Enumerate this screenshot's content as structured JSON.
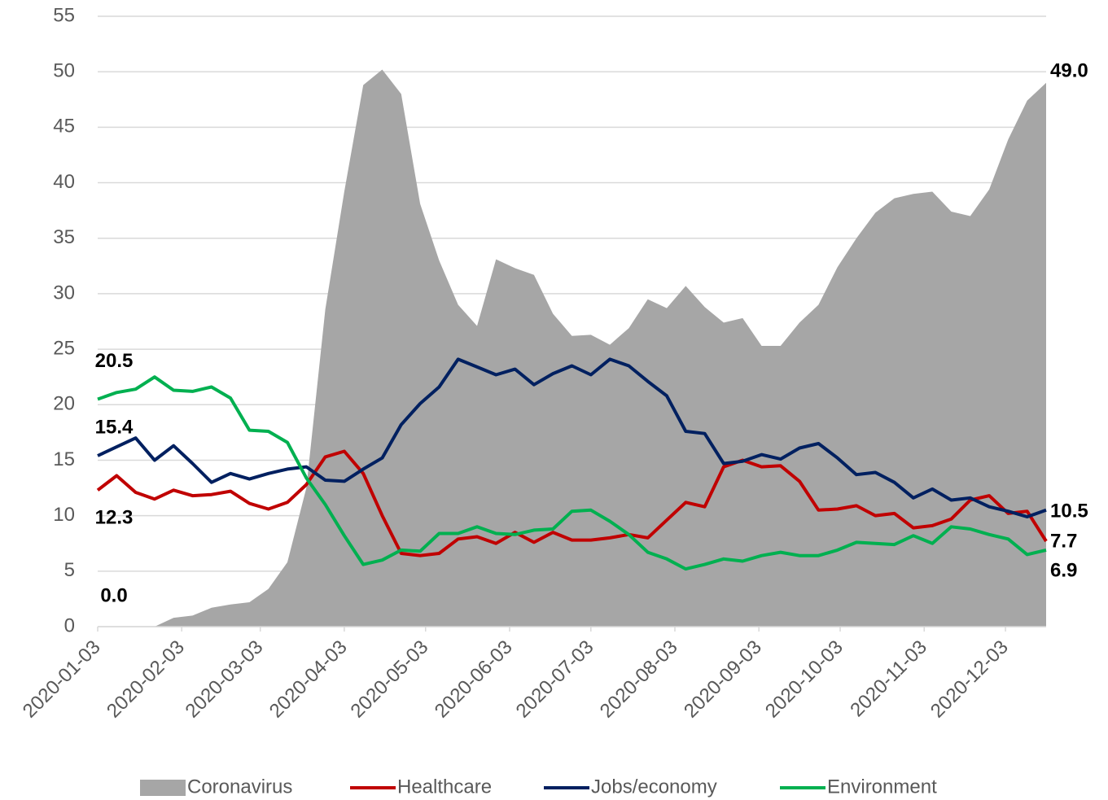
{
  "chart_data": {
    "type": "line",
    "x": [
      "2020-01-03",
      "2020-01-10",
      "2020-01-17",
      "2020-01-24",
      "2020-01-31",
      "2020-02-07",
      "2020-02-14",
      "2020-02-21",
      "2020-02-28",
      "2020-03-06",
      "2020-03-13",
      "2020-03-20",
      "2020-03-27",
      "2020-04-03",
      "2020-04-10",
      "2020-04-17",
      "2020-04-24",
      "2020-05-01",
      "2020-05-08",
      "2020-05-15",
      "2020-05-22",
      "2020-05-29",
      "2020-06-05",
      "2020-06-12",
      "2020-06-19",
      "2020-06-26",
      "2020-07-03",
      "2020-07-10",
      "2020-07-17",
      "2020-07-24",
      "2020-07-31",
      "2020-08-07",
      "2020-08-14",
      "2020-08-21",
      "2020-08-28",
      "2020-09-04",
      "2020-09-11",
      "2020-09-18",
      "2020-09-25",
      "2020-10-02",
      "2020-10-09",
      "2020-10-16",
      "2020-10-23",
      "2020-10-30",
      "2020-11-06",
      "2020-11-13",
      "2020-11-20",
      "2020-11-27",
      "2020-12-04",
      "2020-12-11",
      "2020-12-18"
    ],
    "xlim": [
      "2020-01-03",
      "2020-12-18"
    ],
    "xticks": [
      "2020-01-03",
      "2020-02-03",
      "2020-03-03",
      "2020-04-03",
      "2020-05-03",
      "2020-06-03",
      "2020-07-03",
      "2020-08-03",
      "2020-09-03",
      "2020-10-03",
      "2020-11-03",
      "2020-12-03"
    ],
    "ylim": [
      0,
      55
    ],
    "yticks": [
      0,
      5,
      10,
      15,
      20,
      25,
      30,
      35,
      40,
      45,
      50,
      55
    ],
    "grid": true,
    "legend": "bottom",
    "series": [
      {
        "name": "Coronavirus",
        "type": "area",
        "color": "#a6a6a6",
        "values": [
          0,
          0,
          0,
          0,
          0.8,
          1.0,
          1.7,
          2.0,
          2.2,
          3.4,
          5.8,
          12.5,
          28.6,
          39.2,
          48.8,
          50.2,
          48.0,
          38.1,
          33.0,
          29.0,
          27.1,
          33.1,
          32.3,
          31.7,
          28.2,
          26.2,
          26.3,
          25.4,
          26.9,
          29.5,
          28.7,
          30.7,
          28.8,
          27.4,
          27.8,
          25.3,
          25.3,
          27.4,
          29.0,
          32.4,
          35.0,
          37.3,
          38.6,
          39.0,
          39.2,
          37.4,
          37.0,
          39.4,
          43.9,
          47.4,
          49.0
        ],
        "value_labels": [
          "0.0",
          null,
          null,
          null,
          null,
          null,
          null,
          null,
          null,
          null,
          null,
          null,
          null,
          null,
          null,
          null,
          null,
          null,
          null,
          null,
          null,
          null,
          null,
          null,
          null,
          null,
          null,
          null,
          null,
          null,
          null,
          null,
          null,
          null,
          null,
          null,
          null,
          null,
          null,
          null,
          null,
          null,
          null,
          null,
          null,
          null,
          null,
          null,
          null,
          null,
          "49.0"
        ]
      },
      {
        "name": "Healthcare",
        "type": "line",
        "color": "#c00000",
        "values": [
          12.3,
          13.6,
          12.1,
          11.5,
          12.3,
          11.8,
          11.9,
          12.2,
          11.1,
          10.6,
          11.2,
          12.8,
          15.3,
          15.8,
          13.8,
          10.0,
          6.6,
          6.4,
          6.6,
          7.9,
          8.1,
          7.5,
          8.5,
          7.6,
          8.5,
          7.8,
          7.8,
          8.0,
          8.3,
          8.0,
          9.6,
          11.2,
          10.8,
          14.4,
          15.0,
          14.4,
          14.5,
          13.1,
          10.5,
          10.6,
          10.9,
          10.0,
          10.2,
          8.9,
          9.1,
          9.7,
          11.4,
          11.8,
          10.2,
          10.4,
          7.7
        ],
        "value_labels": [
          "12.3",
          null,
          null,
          null,
          null,
          null,
          null,
          null,
          null,
          null,
          null,
          null,
          null,
          null,
          null,
          null,
          null,
          null,
          null,
          null,
          null,
          null,
          null,
          null,
          null,
          null,
          null,
          null,
          null,
          null,
          null,
          null,
          null,
          null,
          null,
          null,
          null,
          null,
          null,
          null,
          null,
          null,
          null,
          null,
          null,
          null,
          null,
          null,
          null,
          null,
          "7.7"
        ]
      },
      {
        "name": "Jobs/economy",
        "type": "line",
        "color": "#002060",
        "values": [
          15.4,
          16.2,
          17.0,
          15.0,
          16.3,
          14.7,
          13.0,
          13.8,
          13.3,
          13.8,
          14.2,
          14.4,
          13.2,
          13.1,
          14.2,
          15.2,
          18.2,
          20.1,
          21.6,
          24.1,
          23.4,
          22.7,
          23.2,
          21.8,
          22.8,
          23.5,
          22.7,
          24.1,
          23.5,
          22.1,
          20.8,
          17.6,
          17.4,
          14.7,
          14.9,
          15.5,
          15.1,
          16.1,
          16.5,
          15.2,
          13.7,
          13.9,
          13.0,
          11.6,
          12.4,
          11.4,
          11.6,
          10.8,
          10.4,
          9.9,
          10.5
        ],
        "value_labels": [
          "15.4",
          null,
          null,
          null,
          null,
          null,
          null,
          null,
          null,
          null,
          null,
          null,
          null,
          null,
          null,
          null,
          null,
          null,
          null,
          null,
          null,
          null,
          null,
          null,
          null,
          null,
          null,
          null,
          null,
          null,
          null,
          null,
          null,
          null,
          null,
          null,
          null,
          null,
          null,
          null,
          null,
          null,
          null,
          null,
          null,
          null,
          null,
          null,
          null,
          null,
          "10.5"
        ]
      },
      {
        "name": "Environment",
        "type": "line",
        "color": "#00b050",
        "values": [
          20.5,
          21.1,
          21.4,
          22.5,
          21.3,
          21.2,
          21.6,
          20.6,
          17.7,
          17.6,
          16.6,
          13.4,
          11.0,
          8.2,
          5.6,
          6.0,
          6.9,
          6.8,
          8.4,
          8.4,
          9.0,
          8.4,
          8.3,
          8.7,
          8.8,
          10.4,
          10.5,
          9.5,
          8.3,
          6.7,
          6.1,
          5.2,
          5.6,
          6.1,
          5.9,
          6.4,
          6.7,
          6.4,
          6.4,
          6.9,
          7.6,
          7.5,
          7.4,
          8.2,
          7.5,
          9.0,
          8.8,
          8.3,
          7.9,
          6.5,
          6.9
        ],
        "value_labels": [
          "20.5",
          null,
          null,
          null,
          null,
          null,
          null,
          null,
          null,
          null,
          null,
          null,
          null,
          null,
          null,
          null,
          null,
          null,
          null,
          null,
          null,
          null,
          null,
          null,
          null,
          null,
          null,
          null,
          null,
          null,
          null,
          null,
          null,
          null,
          null,
          null,
          null,
          null,
          null,
          null,
          null,
          null,
          null,
          null,
          null,
          null,
          null,
          null,
          null,
          null,
          "6.9"
        ]
      }
    ]
  }
}
